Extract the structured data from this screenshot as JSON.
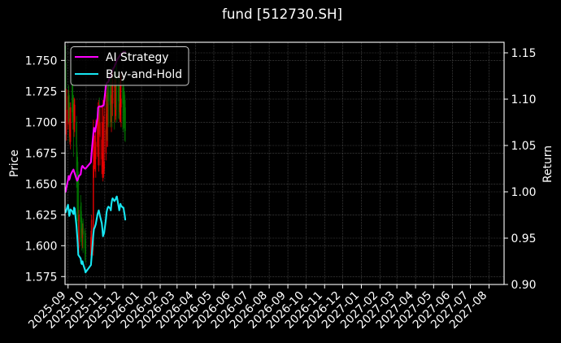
{
  "chart_data": {
    "type": "line",
    "title": "fund [512730.SH]",
    "xlabel": "",
    "ylabel": "Price",
    "ylabel_right": "Return",
    "xlim": [
      "2025-08-27",
      "2027-08-26"
    ],
    "ylim": [
      1.5686,
      1.7647
    ],
    "ylim_right": [
      0.9,
      1.1614
    ],
    "grid": true,
    "legend_position": "upper left",
    "x_tick_labels": [
      "2025-09",
      "2025-10",
      "2025-11",
      "2025-12",
      "2026-01",
      "2026-02",
      "2026-03",
      "2026-04",
      "2026-05",
      "2026-06",
      "2026-07",
      "2026-08",
      "2026-09",
      "2026-10",
      "2026-11",
      "2026-12",
      "2027-01",
      "2027-02",
      "2027-03",
      "2027-04",
      "2027-05",
      "2027-06",
      "2027-07",
      "2027-08"
    ],
    "y_tick_labels": [
      "1.575",
      "1.600",
      "1.625",
      "1.650",
      "1.675",
      "1.700",
      "1.725",
      "1.750"
    ],
    "y_tick_labels_right": [
      "0.90",
      "0.95",
      "1.00",
      "1.05",
      "1.10",
      "1.15"
    ],
    "colors": {
      "background": "#000000",
      "text": "#ffffff",
      "frame": "#ffffff",
      "grid": "#5a5a5a",
      "legend_border": "#cccccc",
      "candle_up": "#ff0000",
      "candle_down": "#008000"
    },
    "dates": [
      "2025-08-28",
      "2025-08-29",
      "2025-09-01",
      "2025-09-02",
      "2025-09-03",
      "2025-09-04",
      "2025-09-05",
      "2025-09-08",
      "2025-09-09",
      "2025-09-10",
      "2025-09-11",
      "2025-09-12",
      "2025-09-15",
      "2025-09-16",
      "2025-09-17",
      "2025-09-18",
      "2025-09-19",
      "2025-09-22",
      "2025-09-23",
      "2025-09-24",
      "2025-09-25",
      "2025-09-26",
      "2025-09-29",
      "2025-09-30",
      "2025-10-09",
      "2025-10-10",
      "2025-10-13",
      "2025-10-14",
      "2025-10-15",
      "2025-10-16",
      "2025-10-17",
      "2025-10-20",
      "2025-10-21",
      "2025-10-22",
      "2025-10-23",
      "2025-10-24",
      "2025-10-27",
      "2025-10-28",
      "2025-10-29",
      "2025-10-30",
      "2025-10-31",
      "2025-11-03",
      "2025-11-04",
      "2025-11-05",
      "2025-11-06",
      "2025-11-07",
      "2025-11-10",
      "2025-11-11",
      "2025-11-12",
      "2025-11-13",
      "2025-11-14",
      "2025-11-17",
      "2025-11-18",
      "2025-11-19",
      "2025-11-20",
      "2025-11-21",
      "2025-11-24",
      "2025-11-25",
      "2025-11-26",
      "2025-11-27",
      "2025-11-28",
      "2025-12-01",
      "2025-12-02",
      "2025-12-03",
      "2025-12-04",
      "2025-12-05"
    ],
    "series": [
      {
        "name": "AI Strategy",
        "axis": "right",
        "color": "#ff00ff",
        "values": [
          1.0,
          1.004,
          1.013,
          1.017,
          1.013,
          1.015,
          1.018,
          1.022,
          1.023,
          1.024,
          1.022,
          1.02,
          1.014,
          1.012,
          1.013,
          1.015,
          1.017,
          1.019,
          1.024,
          1.027,
          1.028,
          1.027,
          1.025,
          1.025,
          1.032,
          1.041,
          1.063,
          1.069,
          1.067,
          1.065,
          1.069,
          1.08,
          1.091,
          1.092,
          1.092,
          1.092,
          1.092,
          1.093,
          1.093,
          1.093,
          1.098,
          1.115,
          1.117,
          1.118,
          1.118,
          1.119,
          1.125,
          1.126,
          1.128,
          1.13,
          1.132,
          1.135,
          1.137,
          1.138,
          1.14,
          1.142,
          1.145,
          1.146,
          1.147,
          1.148,
          1.149,
          1.15,
          1.151,
          1.151,
          1.151,
          1.151
        ]
      },
      {
        "name": "Buy-and-Hold",
        "axis": "right",
        "color": "#16e6f2",
        "values": [
          0.978,
          0.98,
          0.986,
          0.98,
          0.974,
          0.976,
          0.981,
          0.979,
          0.977,
          0.976,
          0.983,
          0.982,
          0.963,
          0.954,
          0.945,
          0.932,
          0.931,
          0.928,
          0.923,
          0.922,
          0.925,
          0.922,
          0.916,
          0.913,
          0.921,
          0.929,
          0.954,
          0.96,
          0.961,
          0.963,
          0.965,
          0.976,
          0.978,
          0.98,
          0.977,
          0.974,
          0.966,
          0.96,
          0.952,
          0.954,
          0.956,
          0.971,
          0.978,
          0.981,
          0.983,
          0.984,
          0.982,
          0.98,
          0.987,
          0.991,
          0.993,
          0.99,
          0.991,
          0.992,
          0.994,
          0.995,
          0.984,
          0.98,
          0.983,
          0.987,
          0.985,
          0.983,
          0.983,
          0.979,
          0.975,
          0.97
        ]
      }
    ],
    "candles": {
      "axis": "left",
      "fields": [
        "open",
        "high",
        "low",
        "close"
      ],
      "ohlc": [
        [
          1.748,
          1.762,
          1.7,
          1.707
        ],
        [
          1.69,
          1.727,
          1.685,
          1.71
        ],
        [
          1.698,
          1.726,
          1.694,
          1.721
        ],
        [
          1.724,
          1.73,
          1.7,
          1.71
        ],
        [
          1.716,
          1.722,
          1.684,
          1.7
        ],
        [
          1.688,
          1.712,
          1.682,
          1.703
        ],
        [
          1.684,
          1.716,
          1.678,
          1.712
        ],
        [
          1.735,
          1.748,
          1.7,
          1.708
        ],
        [
          1.722,
          1.732,
          1.694,
          1.705
        ],
        [
          1.718,
          1.722,
          1.672,
          1.703
        ],
        [
          1.694,
          1.72,
          1.688,
          1.715
        ],
        [
          1.7,
          1.719,
          1.692,
          1.714
        ],
        [
          1.7,
          1.705,
          1.647,
          1.68
        ],
        [
          1.676,
          1.68,
          1.609,
          1.665
        ],
        [
          1.668,
          1.672,
          1.62,
          1.649
        ],
        [
          1.655,
          1.66,
          1.605,
          1.626
        ],
        [
          1.598,
          1.629,
          1.594,
          1.625
        ],
        [
          1.632,
          1.641,
          1.603,
          1.619
        ],
        [
          1.628,
          1.635,
          1.6,
          1.611
        ],
        [
          1.62,
          1.623,
          1.596,
          1.609
        ],
        [
          1.606,
          1.618,
          1.598,
          1.614
        ],
        [
          1.618,
          1.622,
          1.594,
          1.609
        ],
        [
          1.612,
          1.614,
          1.588,
          1.598
        ],
        [
          1.605,
          1.61,
          1.586,
          1.593
        ],
        [
          1.592,
          1.612,
          1.588,
          1.607
        ],
        [
          1.594,
          1.625,
          1.59,
          1.621
        ],
        [
          1.6,
          1.702,
          1.592,
          1.665
        ],
        [
          1.662,
          1.69,
          1.655,
          1.675
        ],
        [
          1.668,
          1.689,
          1.662,
          1.677
        ],
        [
          1.666,
          1.692,
          1.66,
          1.68
        ],
        [
          1.67,
          1.702,
          1.655,
          1.684
        ],
        [
          1.68,
          1.712,
          1.672,
          1.703
        ],
        [
          1.69,
          1.716,
          1.665,
          1.707
        ],
        [
          1.695,
          1.718,
          1.66,
          1.71
        ],
        [
          1.712,
          1.72,
          1.69,
          1.705
        ],
        [
          1.688,
          1.714,
          1.665,
          1.7
        ],
        [
          1.67,
          1.714,
          1.658,
          1.686
        ],
        [
          1.664,
          1.7,
          1.655,
          1.675
        ],
        [
          1.655,
          1.718,
          1.652,
          1.661
        ],
        [
          1.66,
          1.705,
          1.655,
          1.665
        ],
        [
          1.662,
          1.712,
          1.658,
          1.668
        ],
        [
          1.675,
          1.725,
          1.669,
          1.694
        ],
        [
          1.69,
          1.722,
          1.68,
          1.707
        ],
        [
          1.724,
          1.729,
          1.685,
          1.712
        ],
        [
          1.698,
          1.729,
          1.68,
          1.715
        ],
        [
          1.73,
          1.738,
          1.696,
          1.717
        ],
        [
          1.733,
          1.74,
          1.696,
          1.714
        ],
        [
          1.725,
          1.735,
          1.7,
          1.71
        ],
        [
          1.7,
          1.732,
          1.692,
          1.722
        ],
        [
          1.74,
          1.745,
          1.696,
          1.729
        ],
        [
          1.715,
          1.742,
          1.705,
          1.733
        ],
        [
          1.74,
          1.748,
          1.694,
          1.728
        ],
        [
          1.712,
          1.735,
          1.7,
          1.729
        ],
        [
          1.705,
          1.735,
          1.702,
          1.731
        ],
        [
          1.744,
          1.75,
          1.71,
          1.735
        ],
        [
          1.742,
          1.748,
          1.7,
          1.736
        ],
        [
          1.735,
          1.74,
          1.703,
          1.717
        ],
        [
          1.728,
          1.735,
          1.702,
          1.71
        ],
        [
          1.708,
          1.733,
          1.7,
          1.715
        ],
        [
          1.706,
          1.738,
          1.7,
          1.722
        ],
        [
          1.712,
          1.74,
          1.696,
          1.719
        ],
        [
          1.728,
          1.735,
          1.694,
          1.715
        ],
        [
          1.73,
          1.738,
          1.692,
          1.715
        ],
        [
          1.72,
          1.728,
          1.695,
          1.708
        ],
        [
          1.722,
          1.725,
          1.685,
          1.701
        ],
        [
          1.712,
          1.718,
          1.684,
          1.693
        ]
      ]
    }
  }
}
